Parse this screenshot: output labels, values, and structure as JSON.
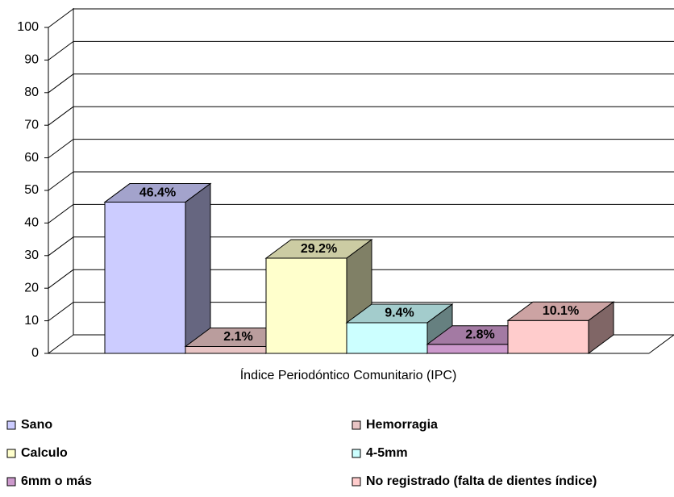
{
  "chart_data": {
    "type": "bar3d",
    "categories": [
      "Índice Periodóntico Comunitario (IPC)"
    ],
    "series": [
      {
        "name": "Sano",
        "color": "#ccccff",
        "values": [
          46.4
        ],
        "value_labels": [
          "46.4%"
        ]
      },
      {
        "name": "Hemorragia",
        "color": "#e8c4c4",
        "values": [
          2.1
        ],
        "value_labels": [
          "2.1%"
        ]
      },
      {
        "name": "Calculo",
        "color": "#ffffcc",
        "values": [
          29.2
        ],
        "value_labels": [
          "29.2%"
        ]
      },
      {
        "name": "4-5mm",
        "color": "#ccffff",
        "values": [
          9.4
        ],
        "value_labels": [
          "9.4%"
        ]
      },
      {
        "name": "6mm o más",
        "color": "#cc99cc",
        "values": [
          2.8
        ],
        "value_labels": [
          "2.8%"
        ]
      },
      {
        "name": "No registrado (falta de dientes índice)",
        "color": "#ffcccc",
        "values": [
          10.1
        ],
        "value_labels": [
          "10.1%"
        ]
      }
    ],
    "ylim": [
      0,
      100
    ],
    "yticks": [
      0,
      10,
      20,
      30,
      40,
      50,
      60,
      70,
      80,
      90,
      100
    ],
    "grid": true,
    "legend": "bottom"
  }
}
